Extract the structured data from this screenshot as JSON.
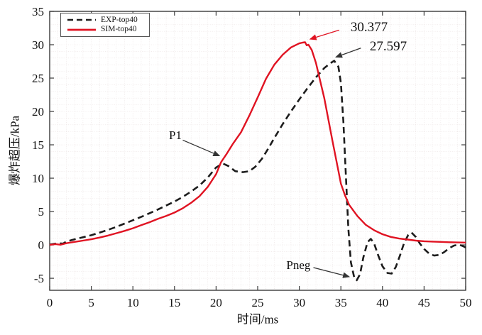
{
  "chart_data": {
    "type": "line",
    "title": "",
    "xlabel": "时间/ms",
    "ylabel": "爆炸超压/kPa",
    "xlim": [
      0,
      50
    ],
    "ylim": [
      -6.8,
      35
    ],
    "xticks": [
      "0",
      "5",
      "10",
      "15",
      "20",
      "25",
      "30",
      "35",
      "40",
      "45",
      "50"
    ],
    "xtick_values": [
      0,
      5,
      10,
      15,
      20,
      25,
      30,
      35,
      40,
      45,
      50
    ],
    "yticks": [
      "-5",
      "0",
      "5",
      "10",
      "15",
      "20",
      "25",
      "30",
      "35"
    ],
    "ytick_values": [
      -5,
      0,
      5,
      10,
      15,
      20,
      25,
      30,
      35
    ],
    "grid": {
      "visible": true,
      "step_x": 1,
      "step_y": 1,
      "color": "#e7dddd"
    },
    "legend_position": "top-left",
    "axis_color": "#3a3a3a",
    "series": [
      {
        "name": "EXP-top40",
        "color": "#1c1c1c",
        "style": "dashed",
        "peak_label": "27.597",
        "points": [
          [
            0,
            0.05
          ],
          [
            1,
            0.25
          ],
          [
            1.6,
            0.2
          ],
          [
            2,
            0.5
          ],
          [
            3,
            0.85
          ],
          [
            4,
            1.15
          ],
          [
            5,
            1.45
          ],
          [
            6,
            1.85
          ],
          [
            7,
            2.25
          ],
          [
            8,
            2.7
          ],
          [
            9,
            3.2
          ],
          [
            10,
            3.7
          ],
          [
            11,
            4.2
          ],
          [
            12,
            4.75
          ],
          [
            13,
            5.3
          ],
          [
            14,
            5.9
          ],
          [
            15,
            6.5
          ],
          [
            16,
            7.2
          ],
          [
            17,
            8.0
          ],
          [
            18,
            8.9
          ],
          [
            19,
            10.1
          ],
          [
            20,
            11.6
          ],
          [
            20.8,
            12.2
          ],
          [
            21.5,
            11.8
          ],
          [
            22.3,
            11.05
          ],
          [
            23.2,
            10.9
          ],
          [
            24,
            11.05
          ],
          [
            24.7,
            11.7
          ],
          [
            25.5,
            12.9
          ],
          [
            26.2,
            14.3
          ],
          [
            27,
            16.0
          ],
          [
            28,
            18.1
          ],
          [
            29,
            20.0
          ],
          [
            30,
            21.8
          ],
          [
            31,
            23.5
          ],
          [
            32,
            25.1
          ],
          [
            33,
            26.5
          ],
          [
            33.7,
            27.2
          ],
          [
            34.2,
            27.597
          ],
          [
            34.7,
            26.7
          ],
          [
            35,
            24.3
          ],
          [
            35.3,
            18.5
          ],
          [
            35.6,
            10.5
          ],
          [
            35.9,
            2.5
          ],
          [
            36.2,
            -2.6
          ],
          [
            36.6,
            -4.9
          ],
          [
            36.9,
            -5.3
          ],
          [
            37.3,
            -4.4
          ],
          [
            37.7,
            -1.9
          ],
          [
            38.2,
            0.4
          ],
          [
            38.6,
            0.9
          ],
          [
            39,
            0.2
          ],
          [
            39.5,
            -1.6
          ],
          [
            40,
            -3.2
          ],
          [
            40.6,
            -4.2
          ],
          [
            41.1,
            -4.3
          ],
          [
            41.6,
            -3.3
          ],
          [
            42.1,
            -1.6
          ],
          [
            42.6,
            0.3
          ],
          [
            43.1,
            1.5
          ],
          [
            43.5,
            1.85
          ],
          [
            44,
            1.2
          ],
          [
            44.5,
            0.2
          ],
          [
            45,
            -0.6
          ],
          [
            45.6,
            -1.3
          ],
          [
            46.2,
            -1.6
          ],
          [
            46.8,
            -1.5
          ],
          [
            47.4,
            -1.1
          ],
          [
            48,
            -0.5
          ],
          [
            48.6,
            -0.1
          ],
          [
            49.2,
            0.05
          ],
          [
            49.7,
            -0.2
          ],
          [
            50,
            -0.4
          ]
        ]
      },
      {
        "name": "SIM-top40",
        "color": "#e01322",
        "style": "solid",
        "peak_label": "30.377",
        "points": [
          [
            0,
            0
          ],
          [
            0.7,
            0.12
          ],
          [
            1.3,
            0.03
          ],
          [
            2,
            0.25
          ],
          [
            3,
            0.45
          ],
          [
            4,
            0.65
          ],
          [
            5,
            0.85
          ],
          [
            6,
            1.1
          ],
          [
            7,
            1.4
          ],
          [
            8,
            1.75
          ],
          [
            9,
            2.1
          ],
          [
            10,
            2.5
          ],
          [
            11,
            2.95
          ],
          [
            12,
            3.4
          ],
          [
            13,
            3.9
          ],
          [
            14,
            4.35
          ],
          [
            15,
            4.85
          ],
          [
            16,
            5.5
          ],
          [
            17,
            6.3
          ],
          [
            18,
            7.3
          ],
          [
            19,
            8.7
          ],
          [
            20,
            10.6
          ],
          [
            20.6,
            12.4
          ],
          [
            21.3,
            13.7
          ],
          [
            22,
            15.1
          ],
          [
            23,
            16.9
          ],
          [
            24,
            19.4
          ],
          [
            25,
            22.1
          ],
          [
            26,
            24.9
          ],
          [
            27,
            27.0
          ],
          [
            28,
            28.5
          ],
          [
            29,
            29.6
          ],
          [
            30,
            30.2
          ],
          [
            30.4,
            30.32
          ],
          [
            30.7,
            30.377
          ],
          [
            30.9,
            29.9
          ],
          [
            31.1,
            30.0
          ],
          [
            31.5,
            29.2
          ],
          [
            32,
            27.3
          ],
          [
            33,
            22.0
          ],
          [
            34,
            15.5
          ],
          [
            34.7,
            11.1
          ],
          [
            35,
            9.2
          ],
          [
            35.5,
            7.4
          ],
          [
            36,
            6.0
          ],
          [
            37,
            4.3
          ],
          [
            38,
            3.0
          ],
          [
            39,
            2.2
          ],
          [
            40,
            1.6
          ],
          [
            41,
            1.2
          ],
          [
            42,
            0.95
          ],
          [
            43,
            0.8
          ],
          [
            44,
            0.65
          ],
          [
            45,
            0.55
          ],
          [
            46,
            0.5
          ],
          [
            47,
            0.45
          ],
          [
            48,
            0.4
          ],
          [
            49,
            0.37
          ],
          [
            50,
            0.35
          ]
        ]
      }
    ],
    "annotations": [
      {
        "label": "30.377",
        "color": "#e01322",
        "size": "big",
        "text_xy": [
          38.4,
          32.6
        ],
        "tail_xy": [
          34.8,
          32.2
        ],
        "tip_xy": [
          31.2,
          30.8
        ]
      },
      {
        "label": "27.597",
        "color": "#333333",
        "size": "big",
        "text_xy": [
          40.7,
          29.7
        ],
        "tail_xy": [
          37.4,
          29.5
        ],
        "tip_xy": [
          34.3,
          28.1
        ]
      },
      {
        "label": "P1",
        "color": "#333333",
        "size": "small",
        "text_xy": [
          15.1,
          16.4
        ],
        "tail_xy": [
          16.0,
          15.7
        ],
        "tip_xy": [
          20.5,
          13.3
        ]
      },
      {
        "label": "Pneg",
        "color": "#333333",
        "size": "small",
        "text_xy": [
          29.9,
          -3.1
        ],
        "tail_xy": [
          31.7,
          -3.4
        ],
        "tip_xy": [
          36.1,
          -4.8
        ]
      }
    ]
  },
  "legend": {
    "items": [
      {
        "label": "EXP-top40"
      },
      {
        "label": "SIM-top40"
      }
    ]
  }
}
